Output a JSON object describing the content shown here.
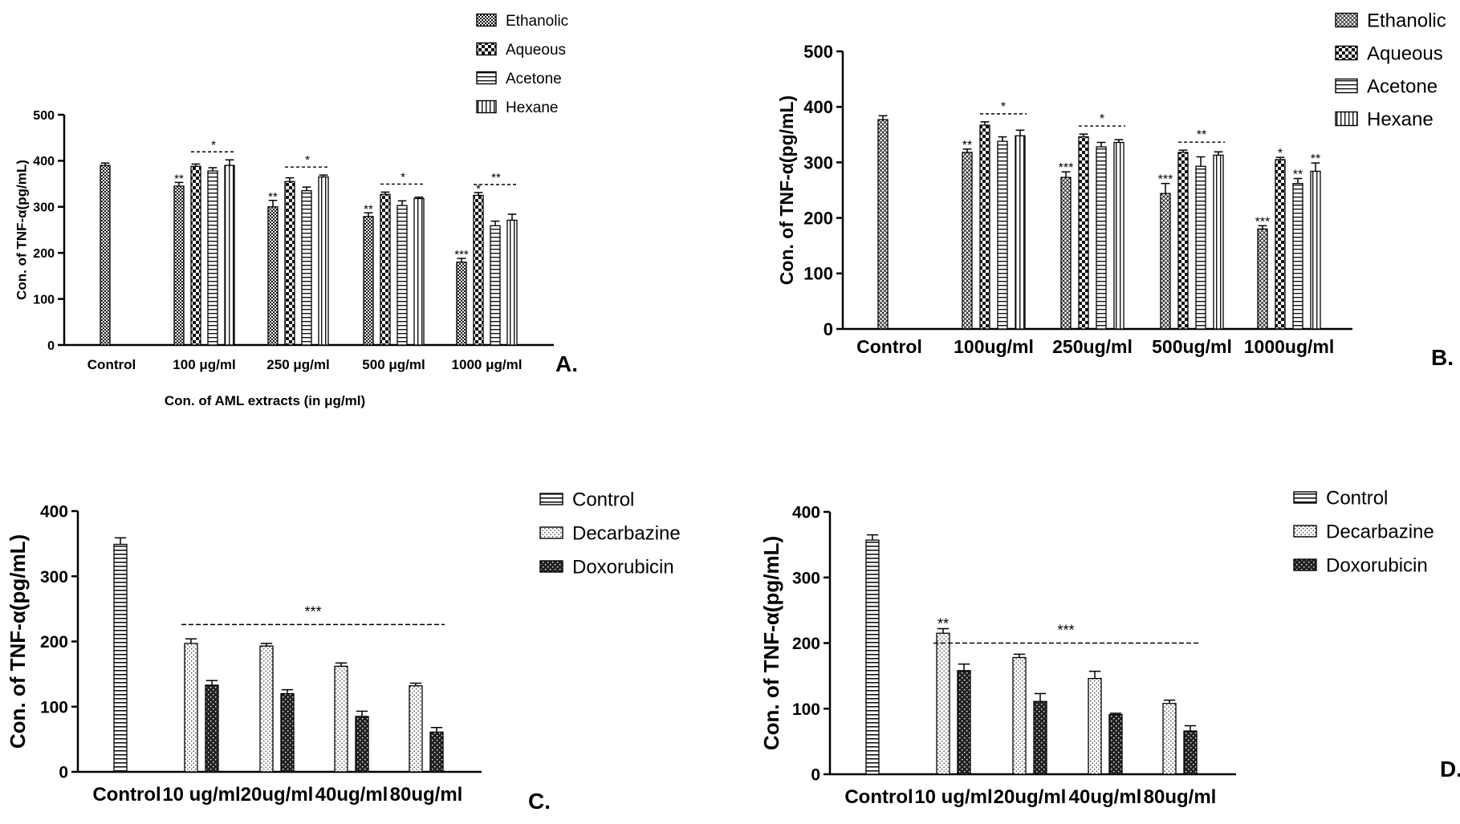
{
  "chart_data": [
    {
      "type": "bar",
      "panel_label": "A.",
      "ylabel": "Con. of TNF-α(pg/mL)",
      "xlabel": "Con. of AML extracts (in μg/ml)",
      "ylim": [
        0,
        500
      ],
      "yticks": [
        "0",
        "100",
        "200",
        "300",
        "400",
        "500"
      ],
      "categories": [
        "Control",
        "100 μg/ml",
        "250 μg/ml",
        "500 μg/ml",
        "1000 μg/ml"
      ],
      "series": [
        {
          "name": "Ethanolic",
          "values": [
            390,
            345,
            300,
            279,
            180
          ],
          "errors": [
            5,
            8,
            14,
            8,
            8
          ],
          "stars": [
            "",
            "**",
            "**",
            "**",
            "***"
          ]
        },
        {
          "name": "Aqueous",
          "values": [
            null,
            388,
            355,
            327,
            325
          ],
          "errors": [
            null,
            5,
            8,
            5,
            6
          ],
          "stars": [
            "",
            "",
            "",
            "",
            "*"
          ]
        },
        {
          "name": "Acetone",
          "values": [
            null,
            378,
            335,
            303,
            259
          ],
          "errors": [
            null,
            7,
            8,
            10,
            10
          ],
          "stars": [
            "",
            "",
            "",
            "",
            ""
          ]
        },
        {
          "name": "Hexane",
          "values": [
            null,
            390,
            365,
            318,
            271
          ],
          "errors": [
            null,
            12,
            4,
            3,
            13
          ],
          "stars": [
            "",
            "",
            "",
            "",
            ""
          ]
        }
      ],
      "annotations": [
        {
          "group": 1,
          "label": "*"
        },
        {
          "group": 2,
          "label": "*"
        },
        {
          "group": 3,
          "label": "*"
        },
        {
          "group": 4,
          "label": "**"
        }
      ]
    },
    {
      "type": "bar",
      "panel_label": "B.",
      "ylabel": "Con. of TNF-α(pg/mL)",
      "xlabel": "",
      "ylim": [
        0,
        500
      ],
      "yticks": [
        "0",
        "100",
        "200",
        "300",
        "400",
        "500"
      ],
      "categories": [
        "Control",
        "100ug/ml",
        "250ug/ml",
        "500ug/ml",
        "1000ug/ml"
      ],
      "series": [
        {
          "name": "Ethanolic",
          "values": [
            377,
            318,
            273,
            244,
            180
          ],
          "errors": [
            7,
            6,
            10,
            18,
            6
          ],
          "stars": [
            "",
            "**",
            "***",
            "***",
            "***"
          ]
        },
        {
          "name": "Aqueous",
          "values": [
            null,
            367,
            346,
            318,
            305
          ],
          "errors": [
            null,
            6,
            5,
            4,
            4
          ],
          "stars": [
            "",
            "",
            "",
            "",
            "*"
          ]
        },
        {
          "name": "Acetone",
          "values": [
            null,
            338,
            328,
            293,
            262
          ],
          "errors": [
            null,
            8,
            8,
            17,
            9
          ],
          "stars": [
            "",
            "",
            "",
            "",
            "**"
          ]
        },
        {
          "name": "Hexane",
          "values": [
            null,
            348,
            336,
            313,
            284
          ],
          "errors": [
            null,
            10,
            5,
            6,
            15
          ],
          "stars": [
            "",
            "",
            "",
            "",
            "**"
          ]
        }
      ],
      "annotations": [
        {
          "group": 1,
          "label": "*"
        },
        {
          "group": 2,
          "label": "*"
        },
        {
          "group": 3,
          "label": "**"
        }
      ]
    },
    {
      "type": "bar",
      "panel_label": "C.",
      "ylabel": "Con. of TNF-α(pg/mL)",
      "xlabel": "",
      "ylim": [
        0,
        400
      ],
      "yticks": [
        "0",
        "100",
        "200",
        "300",
        "400"
      ],
      "categories": [
        "Control",
        "10 ug/ml",
        "20ug/ml",
        "40ug/ml",
        "80ug/ml"
      ],
      "series": [
        {
          "name": "Control",
          "values": [
            349,
            null,
            null,
            null,
            null
          ],
          "errors": [
            10,
            null,
            null,
            null,
            null
          ],
          "stars": [
            "",
            "",
            "",
            "",
            ""
          ]
        },
        {
          "name": "Decarbazine",
          "values": [
            null,
            197,
            193,
            162,
            132
          ],
          "errors": [
            null,
            7,
            4,
            5,
            4
          ],
          "stars": [
            "",
            "",
            "",
            "",
            ""
          ]
        },
        {
          "name": "Doxorubicin",
          "values": [
            null,
            133,
            120,
            85,
            61
          ],
          "errors": [
            null,
            7,
            6,
            8,
            7
          ],
          "stars": [
            "",
            "",
            "",
            "",
            ""
          ]
        }
      ],
      "annotations": [
        {
          "from_group": 1,
          "to_group": 4,
          "label": "***"
        }
      ]
    },
    {
      "type": "bar",
      "panel_label": "D.",
      "ylabel": "Con. of TNF-α(pg/mL)",
      "xlabel": "",
      "ylim": [
        0,
        400
      ],
      "yticks": [
        "0",
        "100",
        "200",
        "300",
        "400"
      ],
      "categories": [
        "Control",
        "10 ug/ml",
        "20ug/ml",
        "40ug/ml",
        "80ug/ml"
      ],
      "series": [
        {
          "name": "Control",
          "values": [
            357,
            null,
            null,
            null,
            null
          ],
          "errors": [
            8,
            null,
            null,
            null,
            null
          ],
          "stars": [
            "",
            "",
            "",
            "",
            ""
          ]
        },
        {
          "name": "Decarbazine",
          "values": [
            null,
            215,
            178,
            146,
            108
          ],
          "errors": [
            null,
            7,
            5,
            11,
            5
          ],
          "stars": [
            "",
            "**",
            "",
            "",
            ""
          ]
        },
        {
          "name": "Doxorubicin",
          "values": [
            null,
            158,
            111,
            91,
            66
          ],
          "errors": [
            null,
            10,
            12,
            2,
            8
          ],
          "stars": [
            "",
            "",
            "",
            "",
            ""
          ]
        }
      ],
      "annotations": [
        {
          "from_group": 1,
          "to_group": 4,
          "label": "***"
        }
      ]
    }
  ]
}
